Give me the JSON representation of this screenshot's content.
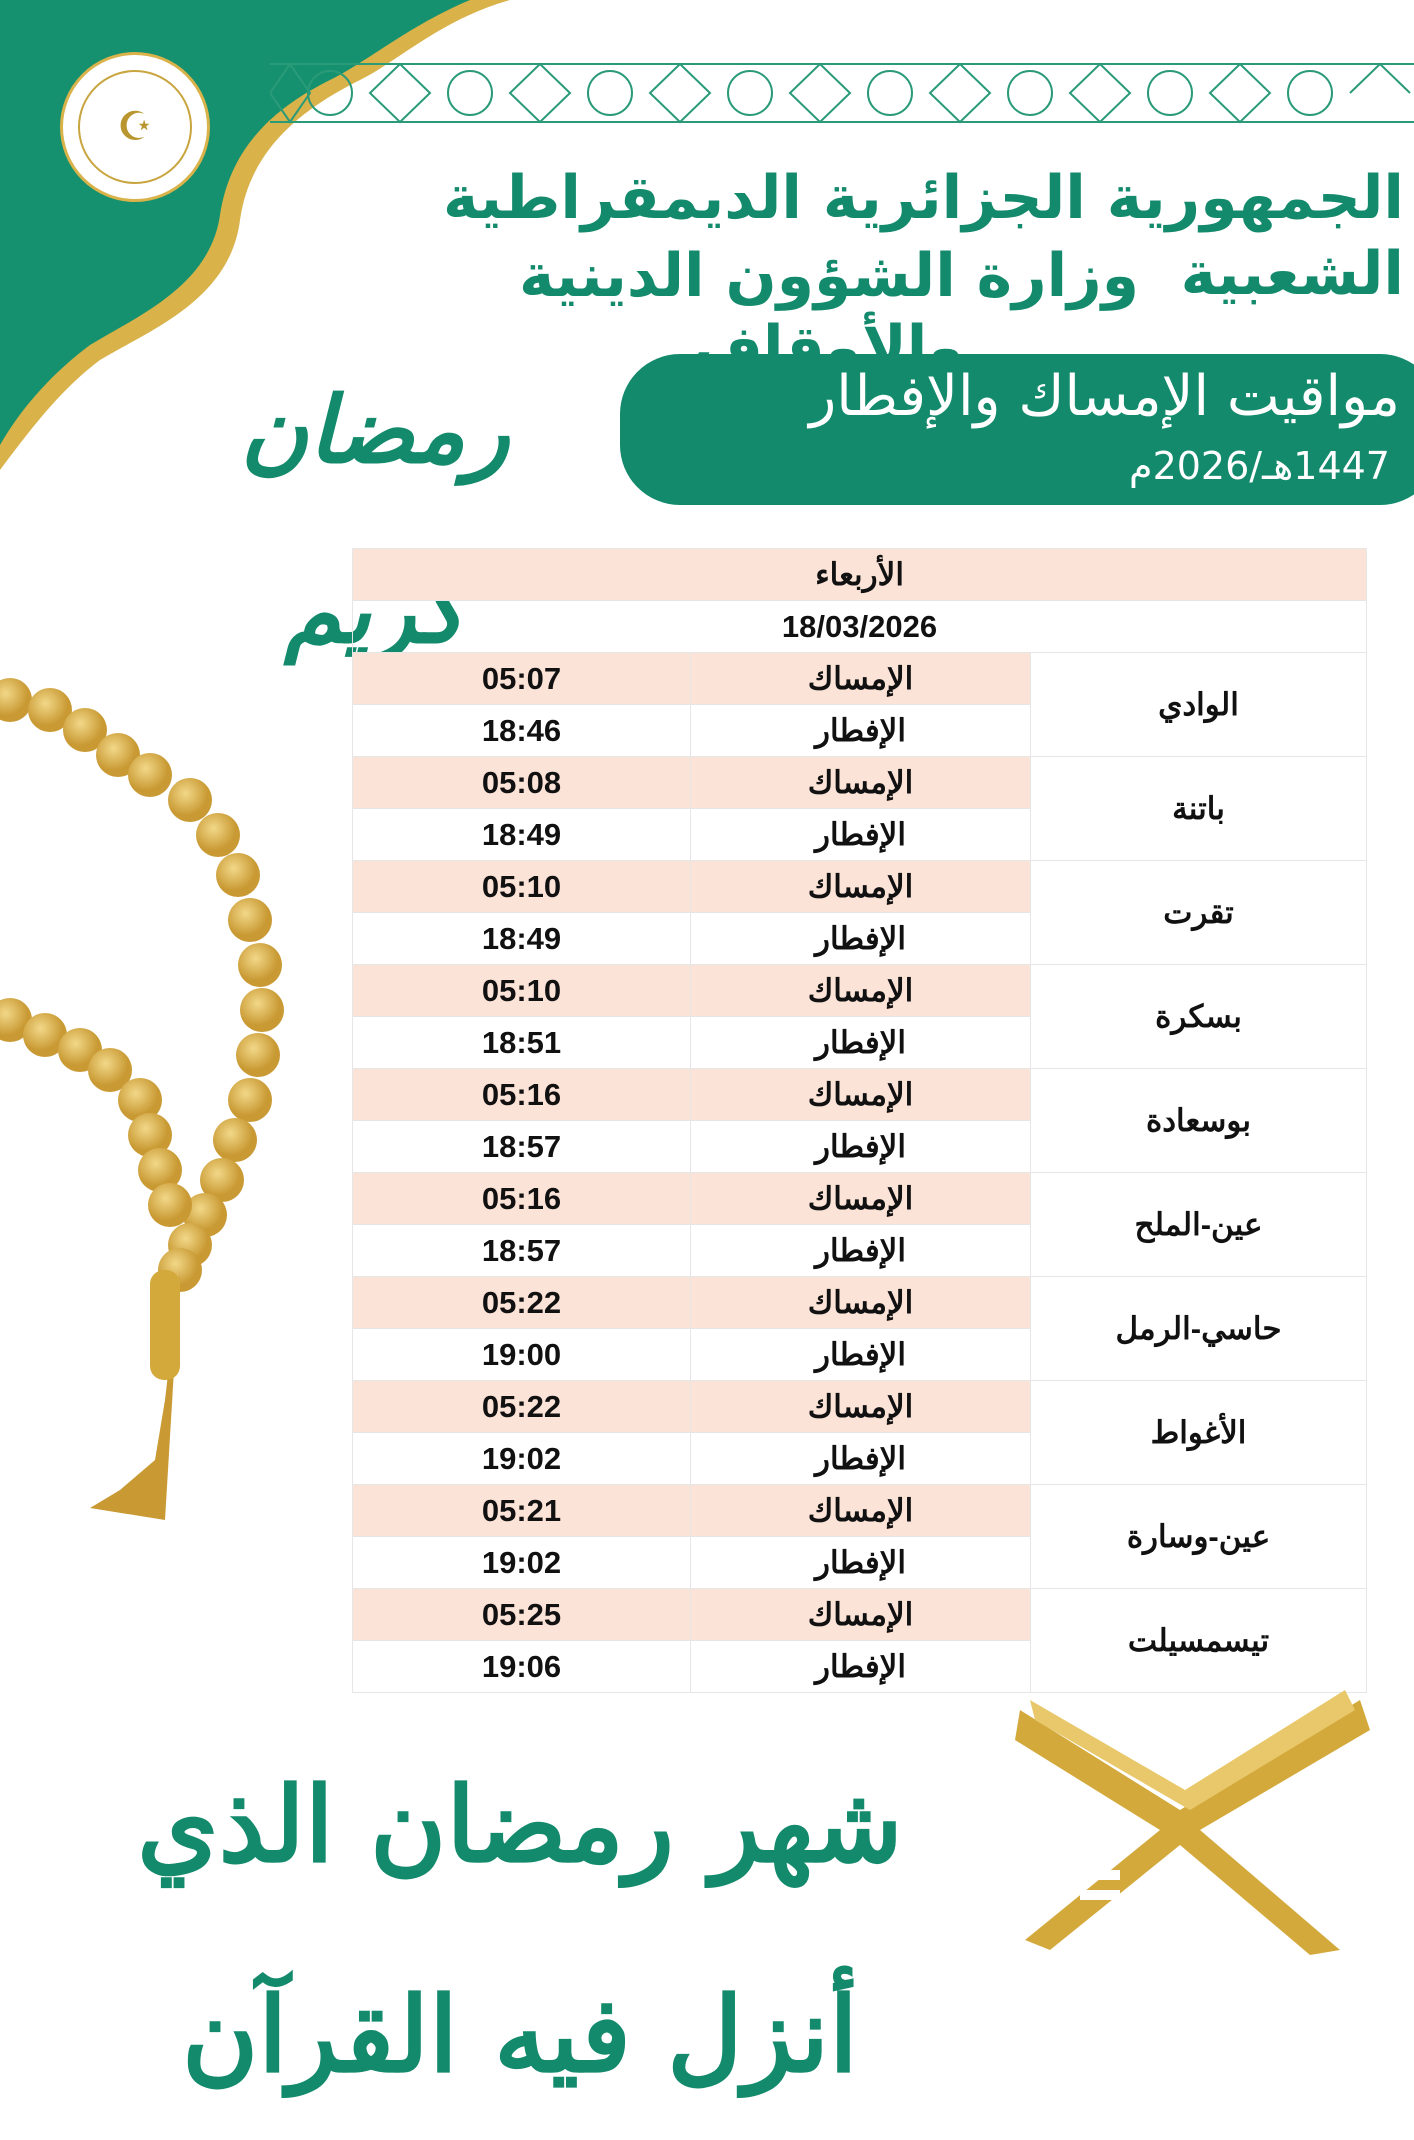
{
  "header": {
    "emblem_text": "وزارة الشؤون الدينية والأوقاف",
    "country": "الجمهورية الجزائرية الديمقراطية الشعبية",
    "ministry": "وزارة الشؤون الدينية والأوقاف",
    "banner_title": "مواقيت الإمساك والإفطار",
    "banner_year": "1447هـ/2026م",
    "ramadan_calligraphy": "رمضان كريم"
  },
  "table": {
    "day": "الأربعاء",
    "date": "18/03/2026",
    "imsak_label": "الإمساك",
    "iftar_label": "الإفطار",
    "rows": [
      {
        "city": "الوادي",
        "imsak": "05:07",
        "iftar": "18:46"
      },
      {
        "city": "باتنة",
        "imsak": "05:08",
        "iftar": "18:49"
      },
      {
        "city": "تقرت",
        "imsak": "05:10",
        "iftar": "18:49"
      },
      {
        "city": "بسكرة",
        "imsak": "05:10",
        "iftar": "18:51"
      },
      {
        "city": "بوسعادة",
        "imsak": "05:16",
        "iftar": "18:57"
      },
      {
        "city": "عين-الملح",
        "imsak": "05:16",
        "iftar": "18:57"
      },
      {
        "city": "حاسي-الرمل",
        "imsak": "05:22",
        "iftar": "19:00"
      },
      {
        "city": "الأغواط",
        "imsak": "05:22",
        "iftar": "19:02"
      },
      {
        "city": "عين-وسارة",
        "imsak": "05:21",
        "iftar": "19:02"
      },
      {
        "city": "تيسمسيلت",
        "imsak": "05:25",
        "iftar": "19:06"
      }
    ]
  },
  "footer": {
    "verse_calligraphy": "شهر رمضان الذي أنزل فيه القرآن"
  },
  "colors": {
    "green": "#128a6b",
    "gold": "#d4a93c",
    "row_pink": "#fce3d8"
  }
}
